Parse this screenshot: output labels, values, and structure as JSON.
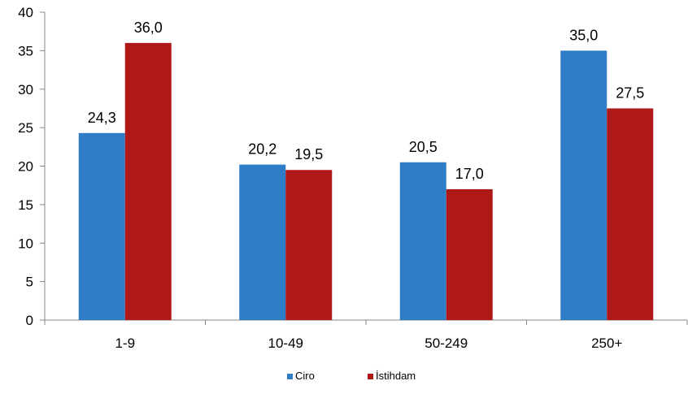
{
  "chart_data": {
    "type": "bar",
    "categories": [
      "1-9",
      "10-49",
      "50-249",
      "250+"
    ],
    "series": [
      {
        "name": "Ciro",
        "color": "#2E7DC6",
        "values": [
          24.3,
          20.2,
          20.5,
          35.0
        ],
        "labels": [
          "24,3",
          "20,2",
          "20,5",
          "35,0"
        ]
      },
      {
        "name": "İstihdam",
        "color": "#B01818",
        "values": [
          36.0,
          19.5,
          17.0,
          27.5
        ],
        "labels": [
          "36,0",
          "19,5",
          "17,0",
          "27,5"
        ]
      }
    ],
    "ylim": [
      0,
      40
    ],
    "yticks": [
      0,
      5,
      10,
      15,
      20,
      25,
      30,
      35,
      40
    ],
    "grid": false,
    "legend_position": "bottom-center"
  }
}
